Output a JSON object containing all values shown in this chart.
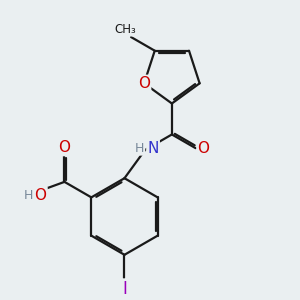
{
  "background_color": "#eaeff1",
  "bond_color": "#1a1a1a",
  "bond_width": 1.6,
  "dbo": 0.055,
  "colors": {
    "O": "#cc0000",
    "N": "#3333cc",
    "I": "#9900bb",
    "H": "#778899"
  },
  "fs": 10
}
